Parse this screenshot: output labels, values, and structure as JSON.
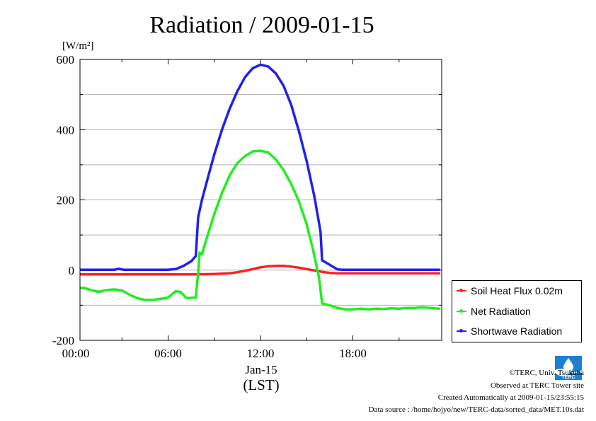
{
  "chart_data": {
    "type": "line",
    "title": "Radiation / 2009-01-15",
    "ylabel": "[W/m²]",
    "xlabel": "Jan-15",
    "xlabel2": "(LST)",
    "xlim": [
      0,
      24
    ],
    "ylim": [
      -200,
      600
    ],
    "yticks": [
      -200,
      0,
      200,
      400,
      600
    ],
    "xticks": [
      {
        "value": 0,
        "label": "00:00"
      },
      {
        "value": 6,
        "label": "06:00"
      },
      {
        "value": 12,
        "label": "12:00"
      },
      {
        "value": 18,
        "label": "18:00"
      }
    ],
    "grid": true,
    "legend_position": "bottom-right-outside",
    "series": [
      {
        "name": "Soil Heat Flux 0.02m",
        "color": "#ff2020",
        "x": [
          0,
          2,
          4,
          6,
          7,
          8,
          9,
          10,
          10.5,
          11,
          11.5,
          12,
          12.5,
          13,
          13.5,
          14,
          14.5,
          15,
          15.5,
          16,
          16.5,
          17,
          18,
          20,
          22,
          23.6
        ],
        "y": [
          -12,
          -12,
          -12,
          -12,
          -12,
          -12,
          -11,
          -9,
          -6,
          -2,
          3,
          8,
          11,
          12,
          12,
          10,
          7,
          3,
          -1,
          -5,
          -8,
          -9,
          -9,
          -9,
          -9,
          -9
        ]
      },
      {
        "name": "Net Radiation",
        "color": "#20ee20",
        "x": [
          0,
          0.5,
          1,
          1.5,
          2,
          2.5,
          3,
          3.5,
          4,
          4.5,
          5,
          5.5,
          6,
          6.5,
          6.8,
          7.2,
          7.8,
          7.95,
          8.05,
          8.2,
          8.5,
          9,
          9.5,
          10,
          10.5,
          11,
          11.5,
          12,
          12.5,
          13,
          13.5,
          14,
          14.5,
          15,
          15.4,
          15.8,
          16.0,
          16.5,
          17,
          17.5,
          18,
          18.5,
          19,
          19.5,
          20,
          20.5,
          21,
          21.5,
          22,
          22.5,
          23,
          23.6
        ],
        "y": [
          -52,
          -50,
          -57,
          -62,
          -57,
          -55,
          -58,
          -70,
          -80,
          -85,
          -85,
          -82,
          -78,
          -60,
          -62,
          -80,
          -78,
          -10,
          50,
          45,
          90,
          160,
          220,
          270,
          305,
          325,
          338,
          340,
          335,
          315,
          285,
          245,
          195,
          130,
          60,
          -20,
          -95,
          -100,
          -108,
          -112,
          -112,
          -110,
          -112,
          -110,
          -111,
          -109,
          -110,
          -108,
          -108,
          -106,
          -108,
          -110
        ]
      },
      {
        "name": "Shortwave Radiation",
        "color": "#2020ee",
        "x": [
          0,
          2,
          2.5,
          2.8,
          3.1,
          4,
          5,
          6,
          6.5,
          7,
          7.5,
          7.8,
          7.95,
          8.2,
          8.5,
          9,
          9.5,
          10,
          10.5,
          11,
          11.5,
          12,
          12.5,
          13,
          13.5,
          14,
          14.5,
          15,
          15.5,
          15.9,
          16.0,
          16.5,
          17.0,
          17.3,
          18,
          20,
          22,
          23.6
        ],
        "y": [
          1,
          1,
          1,
          4,
          1,
          1,
          1,
          1,
          3,
          12,
          25,
          40,
          150,
          200,
          250,
          330,
          400,
          460,
          510,
          550,
          575,
          585,
          580,
          560,
          525,
          470,
          395,
          310,
          210,
          110,
          28,
          15,
          2,
          1,
          1,
          1,
          1,
          1
        ]
      }
    ]
  },
  "footer": {
    "copyright": "©TERC, Univ. Tsukuba",
    "observed": "Observed at TERC Tower site",
    "created": "Created Automatically at 2009-01-15/23:55:15",
    "source": "Data source : /home/hojyo/new/TERC-data/sorted_data/MET.10s.dat"
  },
  "logo": {
    "text": "TERC",
    "color": "#1e7fd0"
  }
}
